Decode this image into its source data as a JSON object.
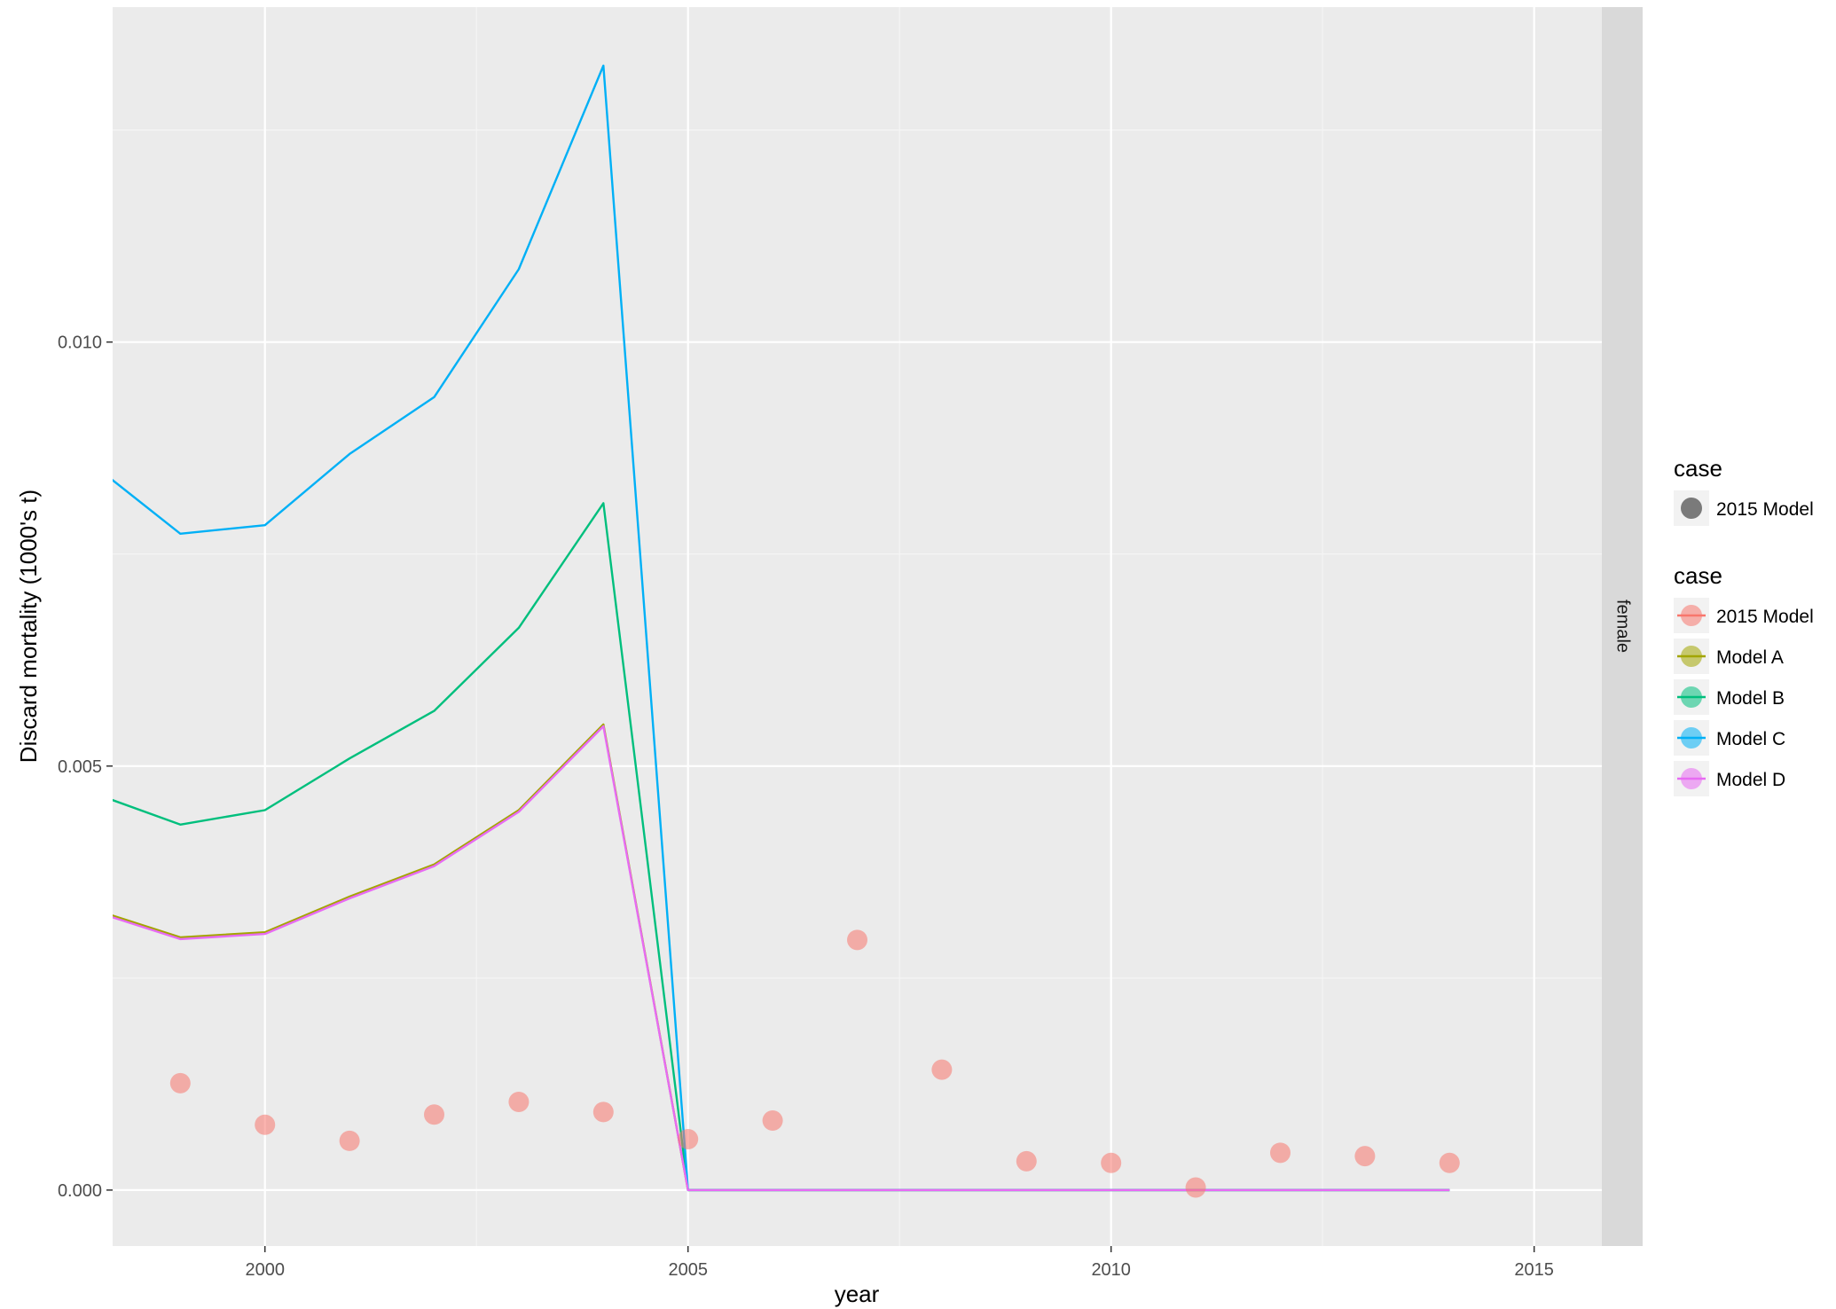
{
  "chart_data": {
    "type": "line",
    "xlabel": "year",
    "ylabel": "Discard mortality (1000's t)",
    "facet_label": "female",
    "xlim": [
      1998.2,
      2015.8
    ],
    "ylim": [
      -0.00066,
      0.01395
    ],
    "x_ticks": [
      2000,
      2005,
      2010,
      2015
    ],
    "x_tick_labels": [
      "2000",
      "2005",
      "2010",
      "2015"
    ],
    "y_ticks": [
      0.0,
      0.005,
      0.01
    ],
    "y_tick_labels": [
      "0.000",
      "0.005",
      "0.010"
    ],
    "grid": true,
    "legend_position": "right",
    "x": [
      1998,
      1999,
      2000,
      2001,
      2002,
      2003,
      2004,
      2005,
      2006,
      2007,
      2008,
      2009,
      2010,
      2011,
      2012,
      2013,
      2014
    ],
    "series": [
      {
        "name": "Model A",
        "color": "#A3A500",
        "values": [
          0.0033,
          0.00298,
          0.00304,
          0.00346,
          0.00384,
          0.00448,
          0.00549,
          0,
          0,
          0,
          0,
          0,
          0,
          0,
          0,
          0,
          0
        ]
      },
      {
        "name": "Model B",
        "color": "#00BF7D",
        "values": [
          0.00467,
          0.00431,
          0.00448,
          0.00509,
          0.00565,
          0.00663,
          0.0081,
          0,
          0,
          0,
          0,
          0,
          0,
          0,
          0,
          0,
          0
        ]
      },
      {
        "name": "Model C",
        "color": "#00B0F6",
        "values": [
          0.00853,
          0.00774,
          0.00784,
          0.00868,
          0.00935,
          0.01086,
          0.01326,
          0,
          0,
          0,
          0,
          0,
          0,
          0,
          0,
          0,
          0
        ]
      },
      {
        "name": "Model D",
        "color": "#E76BF3",
        "values": [
          0.00328,
          0.00296,
          0.00302,
          0.00344,
          0.00382,
          0.00446,
          0.00547,
          0,
          0,
          0,
          0,
          0,
          0,
          0,
          0,
          0,
          0
        ]
      }
    ],
    "points": {
      "name": "2015 Model",
      "color": "#F8766D",
      "x": [
        1999,
        2000,
        2001,
        2002,
        2003,
        2004,
        2005,
        2006,
        2007,
        2008,
        2009,
        2010,
        2011,
        2012,
        2013,
        2014
      ],
      "values": [
        0.00126,
        0.00077,
        0.00058,
        0.00089,
        0.00104,
        0.00092,
        0.0006,
        0.00082,
        0.00295,
        0.00142,
        0.00034,
        0.00032,
        3e-05,
        0.00044,
        0.0004,
        0.00032
      ]
    },
    "legends": [
      {
        "title": "case",
        "items": [
          {
            "label": "2015 Model",
            "color": "#7a7a7a",
            "line": false
          }
        ]
      },
      {
        "title": "case",
        "items": [
          {
            "label": "2015 Model",
            "color": "#F8766D",
            "line": true
          },
          {
            "label": "Model A",
            "color": "#A3A500",
            "line": true
          },
          {
            "label": "Model B",
            "color": "#00BF7D",
            "line": true
          },
          {
            "label": "Model C",
            "color": "#00B0F6",
            "line": true
          },
          {
            "label": "Model D",
            "color": "#E76BF3",
            "line": true
          }
        ]
      }
    ]
  }
}
